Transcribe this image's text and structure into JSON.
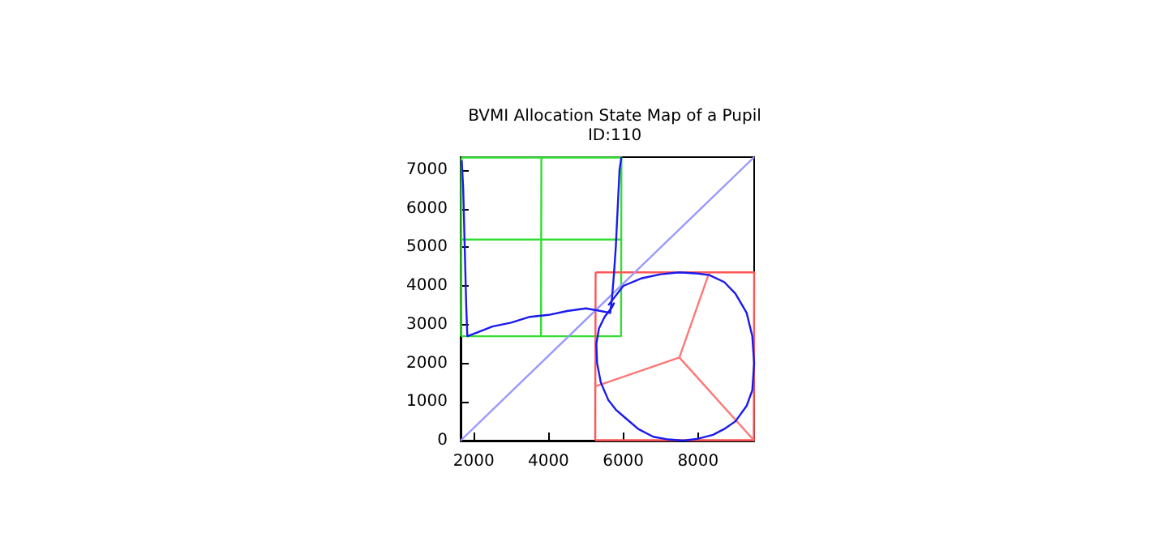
{
  "chart_data": {
    "type": "line",
    "title": "BVMI Allocation State Map of a Pupil",
    "subtitle": "ID:110",
    "xlim": [
      1650,
      9500
    ],
    "ylim": [
      0,
      7330
    ],
    "xticks": [
      2000,
      4000,
      6000,
      8000
    ],
    "yticks": [
      0,
      1000,
      2000,
      3000,
      4000,
      5000,
      6000,
      7000
    ],
    "grid": false,
    "marker": "none",
    "line_style": "solid",
    "series": [
      {
        "color": "#33dd33",
        "x": [
          1660,
          5940,
          5950,
          1670
        ],
        "values": [
          2700,
          2700,
          7320,
          7320
        ]
      },
      {
        "color": "#33dd33",
        "x": [
          3800,
          3810
        ],
        "values": [
          2700,
          7320
        ]
      },
      {
        "color": "#33dd33",
        "x": [
          1660,
          5950
        ],
        "values": [
          5200,
          5200
        ]
      },
      {
        "color": "#33dd33",
        "x": [
          1670,
          1660
        ],
        "values": [
          7320,
          2700
        ]
      },
      {
        "color": "#ff5555",
        "x": [
          5250,
          9490,
          9500,
          5260
        ],
        "values": [
          10,
          10,
          4350,
          4350
        ]
      },
      {
        "color": "#ff5555",
        "x": [
          5260,
          5250
        ],
        "values": [
          4350,
          10
        ]
      },
      {
        "color": "#ff7777",
        "x": [
          7500,
          8300
        ],
        "values": [
          2150,
          4350
        ]
      },
      {
        "color": "#ff7777",
        "x": [
          7500,
          5250
        ],
        "values": [
          2150,
          1400
        ]
      },
      {
        "color": "#ff7777",
        "x": [
          7500,
          9500
        ],
        "values": [
          2150,
          0
        ]
      },
      {
        "color": "#9999ff",
        "x": [
          1650,
          9500
        ],
        "values": [
          0,
          7330
        ]
      },
      {
        "color": "#1a1aee",
        "x": [
          1680,
          1720,
          1760,
          1800,
          1830,
          2100,
          2500,
          3000,
          3500,
          4000,
          4500,
          5000,
          5400,
          5650,
          5700,
          5750,
          5800,
          5850,
          5900,
          5950
        ],
        "values": [
          7250,
          6500,
          5000,
          3500,
          2700,
          2800,
          2950,
          3050,
          3200,
          3250,
          3350,
          3420,
          3350,
          3300,
          3700,
          4300,
          5000,
          6000,
          7000,
          7330
        ]
      },
      {
        "color": "#1a1aee",
        "x": [
          5600,
          6000,
          6500,
          7000,
          7500,
          8000,
          8300,
          8700,
          9000,
          9300,
          9450,
          9500,
          9450,
          9300,
          9000,
          8700,
          8400,
          8000,
          7600,
          7200,
          6800,
          6400,
          6100,
          5800,
          5600,
          5400,
          5300,
          5280,
          5350,
          5500,
          5700,
          5750,
          5650
        ],
        "values": [
          3500,
          4000,
          4200,
          4300,
          4350,
          4320,
          4280,
          4100,
          3800,
          3300,
          2700,
          2000,
          1300,
          900,
          500,
          300,
          150,
          50,
          0,
          30,
          100,
          300,
          550,
          800,
          1050,
          1500,
          2000,
          2500,
          2900,
          3200,
          3450,
          3550,
          3400
        ]
      }
    ]
  }
}
